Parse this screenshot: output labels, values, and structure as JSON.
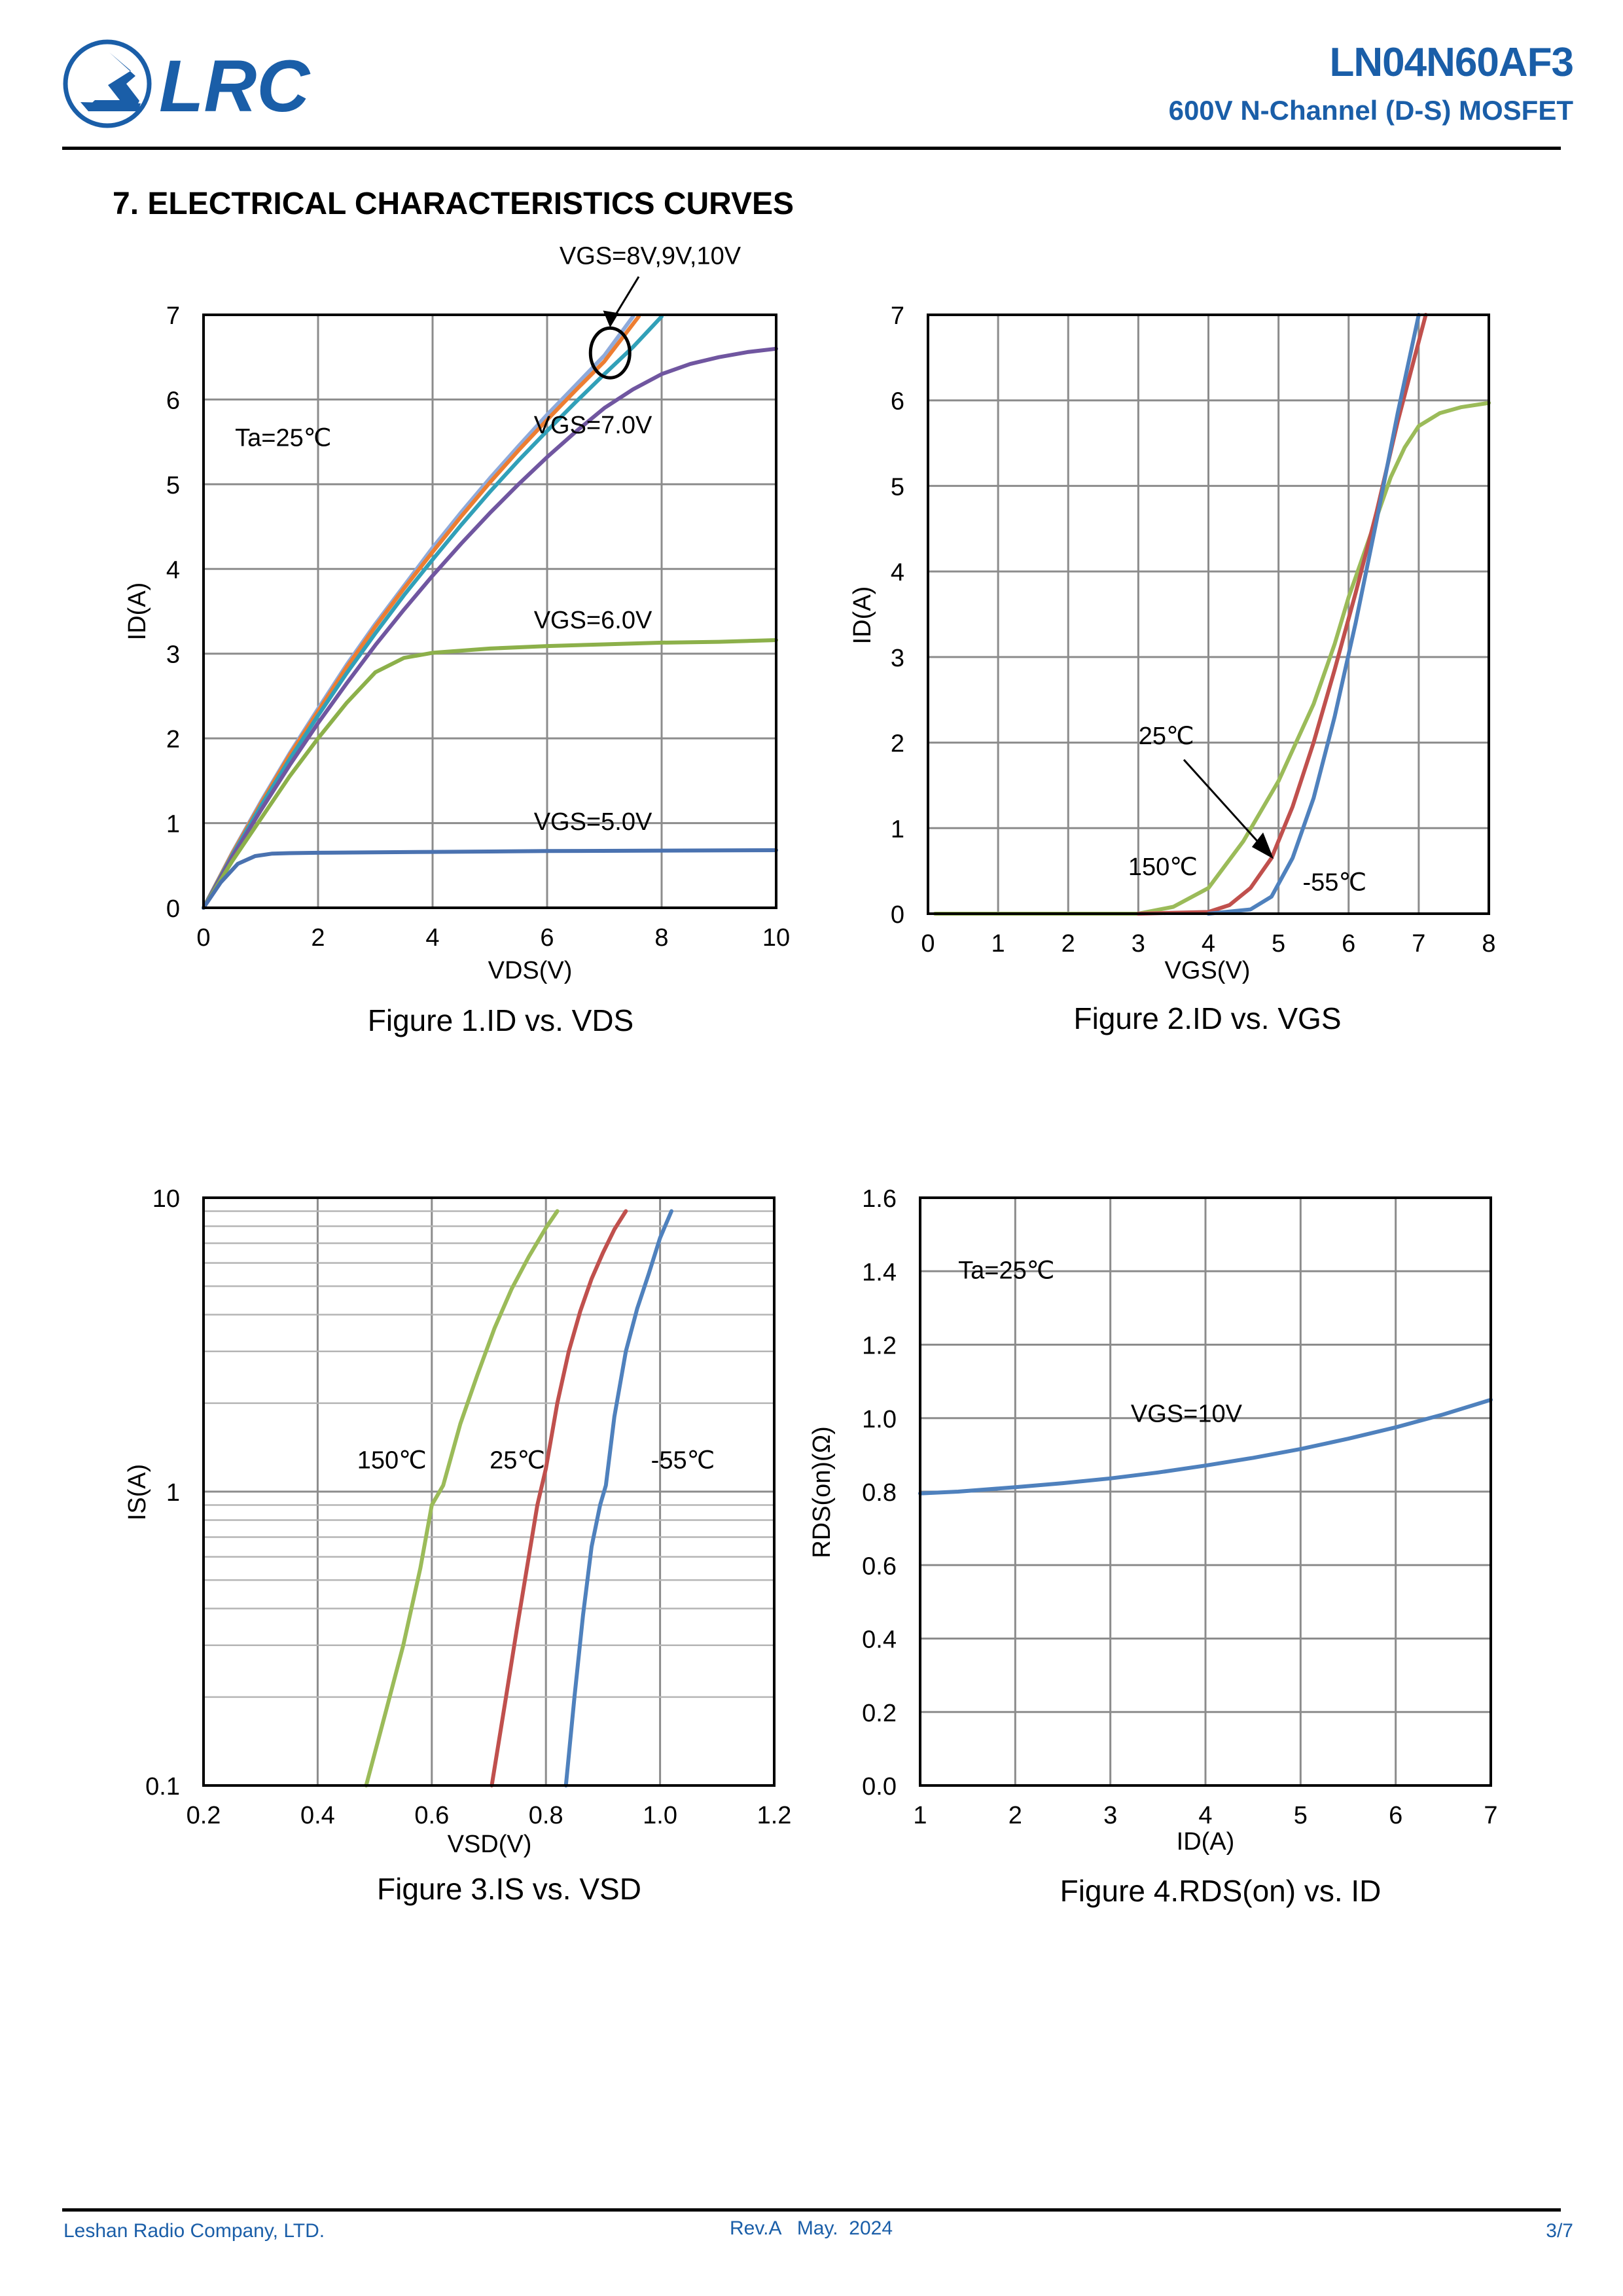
{
  "header": {
    "logo_text": "LRC",
    "part_number": "LN04N60AF3",
    "subtitle": "600V N-Channel (D-S) MOSFET"
  },
  "section_title": "7. ELECTRICAL CHARACTERISTICS CURVES",
  "footer": {
    "company": "Leshan Radio Company, LTD.",
    "revision": "Rev.A   May.  2024",
    "page": "3/7"
  },
  "colors": {
    "brand": "#1a5ea8",
    "grid": "#8c8c8c"
  },
  "chart_data": [
    {
      "type": "line",
      "title": "Figure 1.ID vs. VDS",
      "xlabel": "VDS(V)",
      "ylabel": "ID(A)",
      "xlim": [
        0,
        10
      ],
      "ylim": [
        0,
        7
      ],
      "xticks": [
        "0",
        "2",
        "4",
        "6",
        "8",
        "10"
      ],
      "yticks": [
        "0",
        "1",
        "2",
        "3",
        "4",
        "5",
        "6",
        "7"
      ],
      "grid": true,
      "annotations": [
        "Ta=25℃",
        "VGS=8V,9V,10V",
        "VGS=7.0V",
        "VGS=6.0V",
        "VGS=5.0V"
      ],
      "series": [
        {
          "name": "VGS=10V",
          "color": "#8eaadb",
          "x": [
            0,
            0.5,
            1,
            1.5,
            2,
            2.5,
            3,
            3.5,
            4,
            4.5,
            5,
            5.5,
            6,
            6.5,
            7,
            7.5
          ],
          "y": [
            0,
            0.65,
            1.25,
            1.82,
            2.35,
            2.87,
            3.35,
            3.8,
            4.25,
            4.67,
            5.07,
            5.45,
            5.82,
            6.17,
            6.52,
            6.98
          ]
        },
        {
          "name": "VGS=9V",
          "color": "#ed7d31",
          "x": [
            0,
            0.5,
            1,
            1.5,
            2,
            2.5,
            3,
            3.5,
            4,
            4.5,
            5,
            5.5,
            6,
            6.5,
            7,
            7.6
          ],
          "y": [
            0,
            0.64,
            1.23,
            1.8,
            2.32,
            2.84,
            3.32,
            3.77,
            4.2,
            4.62,
            5.02,
            5.4,
            5.76,
            6.11,
            6.45,
            6.98
          ]
        },
        {
          "name": "VGS=8V",
          "color": "#31a0b8",
          "x": [
            0,
            0.5,
            1,
            1.5,
            2,
            2.5,
            3,
            3.5,
            4,
            4.5,
            5,
            5.5,
            6,
            6.5,
            7,
            7.5,
            8
          ],
          "y": [
            0,
            0.62,
            1.2,
            1.75,
            2.27,
            2.77,
            3.24,
            3.69,
            4.11,
            4.52,
            4.91,
            5.28,
            5.63,
            5.97,
            6.3,
            6.62,
            6.98
          ]
        },
        {
          "name": "VGS=7.0V",
          "color": "#7056a0",
          "x": [
            0,
            0.5,
            1,
            1.5,
            2,
            2.5,
            3,
            3.5,
            4,
            4.5,
            5,
            5.5,
            6,
            6.5,
            7,
            7.5,
            8,
            8.5,
            9,
            9.5,
            10
          ],
          "y": [
            0,
            0.6,
            1.15,
            1.68,
            2.18,
            2.65,
            3.1,
            3.52,
            3.92,
            4.3,
            4.66,
            5.0,
            5.32,
            5.62,
            5.9,
            6.12,
            6.3,
            6.42,
            6.5,
            6.56,
            6.6
          ]
        },
        {
          "name": "VGS=6.0V",
          "color": "#8cb04a",
          "x": [
            0,
            0.5,
            1,
            1.5,
            2,
            2.5,
            3,
            3.5,
            4,
            5,
            6,
            7,
            8,
            9,
            10
          ],
          "y": [
            0,
            0.55,
            1.05,
            1.55,
            2.0,
            2.42,
            2.78,
            2.95,
            3.01,
            3.06,
            3.09,
            3.11,
            3.13,
            3.14,
            3.16
          ]
        },
        {
          "name": "VGS=5.0V",
          "color": "#4a72b0",
          "x": [
            0,
            0.3,
            0.6,
            0.9,
            1.2,
            1.5,
            2,
            4,
            6,
            8,
            10
          ],
          "y": [
            0,
            0.3,
            0.52,
            0.61,
            0.64,
            0.645,
            0.65,
            0.66,
            0.67,
            0.675,
            0.68
          ]
        }
      ]
    },
    {
      "type": "line",
      "title": "Figure 2.ID vs. VGS",
      "xlabel": "VGS(V)",
      "ylabel": "ID(A)",
      "xlim": [
        0,
        8
      ],
      "ylim": [
        0,
        7
      ],
      "xticks": [
        "0",
        "1",
        "2",
        "3",
        "4",
        "5",
        "6",
        "7",
        "8"
      ],
      "yticks": [
        "0",
        "1",
        "2",
        "3",
        "4",
        "5",
        "6",
        "7"
      ],
      "grid": true,
      "annotations": [
        "25℃",
        "150℃",
        "-55℃"
      ],
      "series": [
        {
          "name": "150℃",
          "color": "#9bbb59",
          "x": [
            0.1,
            3,
            3.5,
            4,
            4.5,
            5,
            5.5,
            5.8,
            6,
            6.3,
            6.6,
            6.8,
            7,
            7.3,
            7.6,
            8
          ],
          "y": [
            0,
            0,
            0.08,
            0.3,
            0.85,
            1.55,
            2.45,
            3.15,
            3.7,
            4.4,
            5.1,
            5.45,
            5.7,
            5.85,
            5.92,
            5.97
          ]
        },
        {
          "name": "25℃",
          "color": "#c0504d",
          "x": [
            3,
            4,
            4.3,
            4.6,
            4.9,
            5.2,
            5.5,
            5.8,
            6.1,
            6.4,
            6.7,
            7.1
          ],
          "y": [
            0,
            0.02,
            0.1,
            0.3,
            0.65,
            1.25,
            2.0,
            2.85,
            3.75,
            4.7,
            5.75,
            7.0
          ]
        },
        {
          "name": "-55℃",
          "color": "#4f81bd",
          "x": [
            4,
            4.6,
            4.9,
            5.2,
            5.5,
            5.8,
            6.1,
            6.4,
            6.7,
            7.0
          ],
          "y": [
            0,
            0.05,
            0.2,
            0.65,
            1.35,
            2.3,
            3.4,
            4.6,
            5.85,
            7.0
          ]
        }
      ]
    },
    {
      "type": "line",
      "title": "Figure 3.IS vs. VSD",
      "xlabel": "VSD(V)",
      "ylabel": "IS(A)",
      "xlim": [
        0.2,
        1.2
      ],
      "ylim": [
        0.1,
        10
      ],
      "yscale": "log",
      "xticks": [
        "0.2",
        "0.4",
        "0.6",
        "0.8",
        "1.0",
        "1.2"
      ],
      "yticks": [
        "0.1",
        "1",
        "10"
      ],
      "grid": true,
      "annotations": [
        "150℃",
        "25℃",
        "-55℃"
      ],
      "series": [
        {
          "name": "150℃",
          "color": "#9bbb59",
          "x": [
            0.485,
            0.52,
            0.55,
            0.58,
            0.6,
            0.62,
            0.65,
            0.68,
            0.71,
            0.74,
            0.77,
            0.8,
            0.82
          ],
          "y": [
            0.1,
            0.18,
            0.3,
            0.55,
            0.9,
            1.05,
            1.7,
            2.5,
            3.6,
            4.9,
            6.3,
            7.9,
            9.0
          ]
        },
        {
          "name": "25℃",
          "color": "#c0504d",
          "x": [
            0.705,
            0.73,
            0.75,
            0.77,
            0.785,
            0.8,
            0.82,
            0.84,
            0.86,
            0.88,
            0.9,
            0.92,
            0.94
          ],
          "y": [
            0.1,
            0.2,
            0.35,
            0.6,
            0.9,
            1.2,
            2.0,
            3.0,
            4.1,
            5.3,
            6.5,
            7.8,
            9.0
          ]
        },
        {
          "name": "-55℃",
          "color": "#4f81bd",
          "x": [
            0.835,
            0.85,
            0.865,
            0.88,
            0.895,
            0.905,
            0.92,
            0.94,
            0.96,
            0.98,
            1.0,
            1.02
          ],
          "y": [
            0.1,
            0.2,
            0.38,
            0.65,
            0.9,
            1.05,
            1.8,
            3.0,
            4.2,
            5.5,
            7.3,
            9.0
          ]
        }
      ]
    },
    {
      "type": "line",
      "title": "Figure 4.RDS(on) vs. ID",
      "xlabel": "ID(A)",
      "ylabel": "RDS(on)(Ω)",
      "xlim": [
        1,
        7
      ],
      "ylim": [
        0,
        1.6
      ],
      "xticks": [
        "1",
        "2",
        "3",
        "4",
        "5",
        "6",
        "7"
      ],
      "yticks": [
        "0.0",
        "0.2",
        "0.4",
        "0.6",
        "0.8",
        "1.0",
        "1.2",
        "1.4",
        "1.6"
      ],
      "grid": true,
      "annotations": [
        "Ta=25℃",
        "VGS=10V"
      ],
      "series": [
        {
          "name": "VGS=10V",
          "color": "#4f81bd",
          "x": [
            1,
            1.4,
            2,
            2.5,
            3,
            3.5,
            4,
            4.5,
            5,
            5.5,
            6,
            6.5,
            7
          ],
          "y": [
            0.795,
            0.8,
            0.812,
            0.823,
            0.836,
            0.852,
            0.871,
            0.892,
            0.916,
            0.944,
            0.975,
            1.01,
            1.05
          ]
        }
      ]
    }
  ]
}
